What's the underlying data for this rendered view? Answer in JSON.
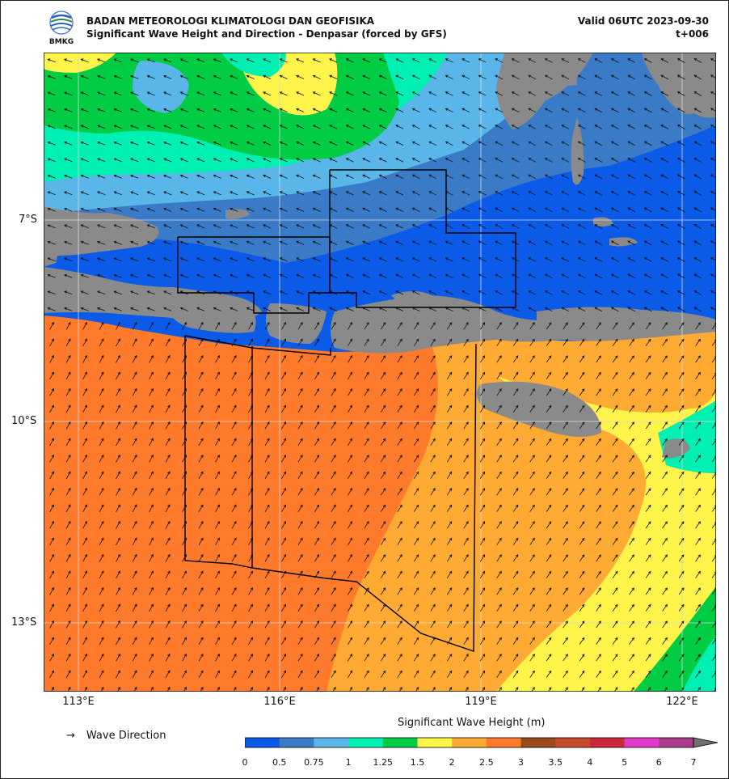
{
  "header": {
    "agency": "BADAN METEOROLOGI KLIMATOLOGI DAN GEOFISIKA",
    "subtitle": "Significant Wave Height and Direction - Denpasar (forced by GFS)",
    "valid": "Valid 06UTC 2023-09-30",
    "step": "t+006",
    "logo_text": "BMKG"
  },
  "axes": {
    "lat_labels": [
      "7°S",
      "10°S",
      "13°S"
    ],
    "lon_labels": [
      "113°E",
      "116°E",
      "119°E",
      "122°E"
    ]
  },
  "legend": {
    "arrow_symbol": "→",
    "arrow_label": "Wave Direction"
  },
  "colorbar": {
    "title": "Significant Wave Height (m)",
    "ticks": [
      "0",
      "0.5",
      "0.75",
      "1",
      "1.25",
      "1.5",
      "2",
      "2.5",
      "3",
      "3.5",
      "4",
      "5",
      "6",
      "7"
    ],
    "colors": [
      "#0b5be8",
      "#3a7bc8",
      "#5ab6e8",
      "#00f0b4",
      "#00cc44",
      "#fff44a",
      "#ffaa33",
      "#ff7a2a",
      "#9a4a1c",
      "#c84a2e",
      "#c82a3a",
      "#e13ac8",
      "#aa3a8a",
      "#707070"
    ]
  },
  "palette": {
    "land": "#8a8a8a",
    "sea_grid": "#d0d0d0"
  }
}
